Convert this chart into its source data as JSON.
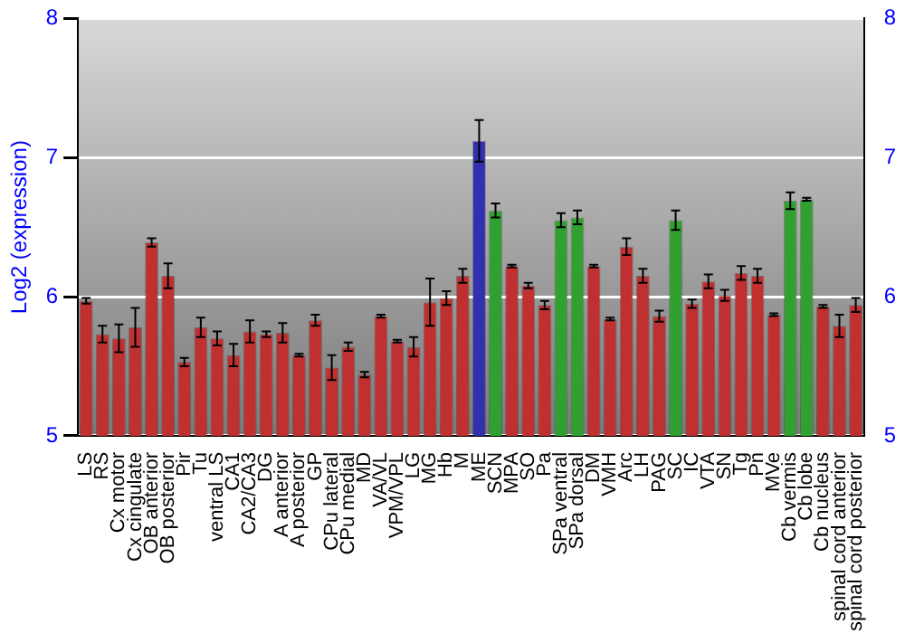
{
  "chart_data": {
    "type": "bar",
    "ylabel": "Log2 (expression)",
    "categories": [
      "LS",
      "RS",
      "Cx motor",
      "Cx cingulate",
      "OB anterior",
      "OB posterior",
      "Pir",
      "Tu",
      "ventral LS",
      "CA1",
      "CA2/CA3",
      "DG",
      "A anterior",
      "A posterior",
      "GP",
      "CPu lateral",
      "CPu medial",
      "MD",
      "VA/VL",
      "VPM/VPL",
      "LG",
      "MG",
      "Hb",
      "M",
      "ME",
      "SCN",
      "MPA",
      "SO",
      "Pa",
      "SPa ventral",
      "SPa dorsal",
      "DM",
      "VMH",
      "Arc",
      "LH",
      "PAG",
      "SC",
      "IC",
      "VTA",
      "SN",
      "Tg",
      "Pn",
      "MVe",
      "Cb vermis",
      "Cb lobe",
      "Cb nucleus",
      "spinal cord anterior",
      "spinal cord posterior"
    ],
    "values": [
      5.97,
      5.73,
      5.7,
      5.78,
      6.39,
      6.15,
      5.53,
      5.78,
      5.7,
      5.58,
      5.75,
      5.73,
      5.74,
      5.58,
      5.83,
      5.49,
      5.64,
      5.44,
      5.86,
      5.68,
      5.64,
      5.96,
      5.99,
      6.15,
      7.12,
      6.62,
      6.22,
      6.08,
      5.94,
      6.55,
      6.57,
      6.22,
      5.84,
      6.36,
      6.15,
      5.86,
      6.55,
      5.95,
      6.11,
      6.01,
      6.17,
      6.15,
      5.87,
      6.69,
      6.7,
      5.93,
      5.79,
      5.94
    ],
    "errors": [
      0.02,
      0.06,
      0.1,
      0.14,
      0.03,
      0.09,
      0.03,
      0.07,
      0.05,
      0.08,
      0.08,
      0.02,
      0.07,
      0.01,
      0.04,
      0.09,
      0.03,
      0.02,
      0.01,
      0.01,
      0.07,
      0.17,
      0.05,
      0.05,
      0.15,
      0.05,
      0.01,
      0.02,
      0.03,
      0.05,
      0.05,
      0.01,
      0.01,
      0.06,
      0.05,
      0.04,
      0.07,
      0.03,
      0.05,
      0.04,
      0.05,
      0.05,
      0.01,
      0.06,
      0.01,
      0.01,
      0.08,
      0.05
    ],
    "colors": [
      "#c03030",
      "#c03030",
      "#c03030",
      "#c03030",
      "#c03030",
      "#c03030",
      "#c03030",
      "#c03030",
      "#c03030",
      "#c03030",
      "#c03030",
      "#c03030",
      "#c03030",
      "#c03030",
      "#c03030",
      "#c03030",
      "#c03030",
      "#c03030",
      "#c03030",
      "#c03030",
      "#c03030",
      "#c03030",
      "#c03030",
      "#c03030",
      "#3030b0",
      "#30a030",
      "#c03030",
      "#c03030",
      "#c03030",
      "#30a030",
      "#30a030",
      "#c03030",
      "#c03030",
      "#c03030",
      "#c03030",
      "#c03030",
      "#30a030",
      "#c03030",
      "#c03030",
      "#c03030",
      "#c03030",
      "#c03030",
      "#c03030",
      "#30a030",
      "#30a030",
      "#c03030",
      "#c03030",
      "#c03030"
    ],
    "ylim": [
      5,
      8
    ],
    "yticks": [
      5,
      6,
      7,
      8
    ],
    "y2lim": [
      5,
      8
    ],
    "y2ticks": [
      5,
      6,
      7,
      8
    ],
    "grid": "y",
    "legend": false
  }
}
